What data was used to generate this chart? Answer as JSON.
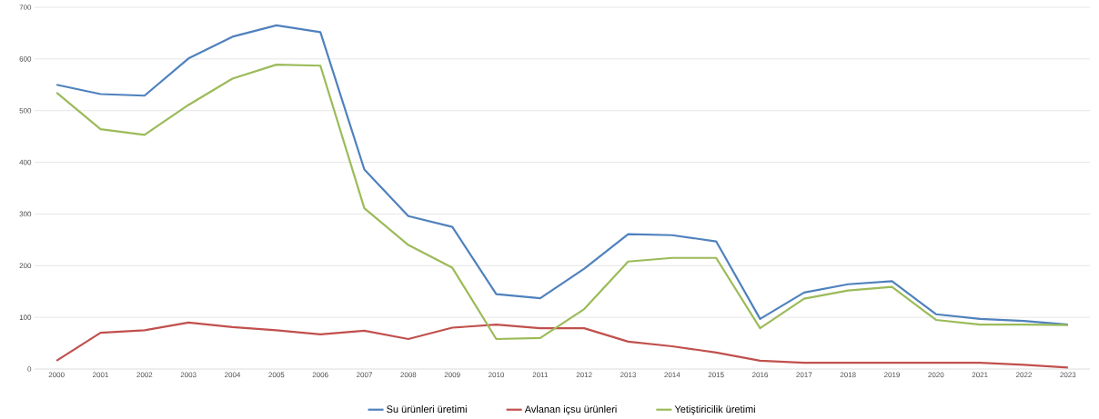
{
  "chart_data": {
    "type": "line",
    "categories": [
      "2000",
      "2001",
      "2002",
      "2003",
      "2004",
      "2005",
      "2006",
      "2007",
      "2008",
      "2009",
      "2010",
      "2011",
      "2012",
      "2013",
      "2014",
      "2015",
      "2016",
      "2017",
      "2018",
      "2019",
      "2020",
      "2021",
      "2022",
      "2023"
    ],
    "series": [
      {
        "name": "Su ürünleri üretimi",
        "color": "#4f81bd",
        "values": [
          550,
          532,
          529,
          601,
          643,
          665,
          652,
          386,
          296,
          275,
          145,
          137,
          194,
          261,
          259,
          247,
          97,
          148,
          164,
          170,
          106,
          97,
          93,
          86
        ]
      },
      {
        "name": "Avlanan içsu ürünleri",
        "color": "#c0504d",
        "values": [
          16,
          70,
          75,
          90,
          81,
          75,
          67,
          74,
          58,
          80,
          86,
          79,
          79,
          53,
          44,
          32,
          16,
          12,
          12,
          12,
          12,
          12,
          8,
          3
        ]
      },
      {
        "name": "Yetiştiricilik üretimi",
        "color": "#9bbb59",
        "values": [
          535,
          464,
          453,
          511,
          562,
          589,
          587,
          311,
          240,
          196,
          58,
          60,
          116,
          208,
          215,
          215,
          79,
          136,
          152,
          159,
          95,
          86,
          86,
          85
        ]
      }
    ],
    "ylim": [
      0,
      700
    ],
    "yticks": [
      0,
      100,
      200,
      300,
      400,
      500,
      600,
      700
    ],
    "grid": "y",
    "legend": "bottom",
    "marker": "none",
    "line_style": "solid"
  }
}
